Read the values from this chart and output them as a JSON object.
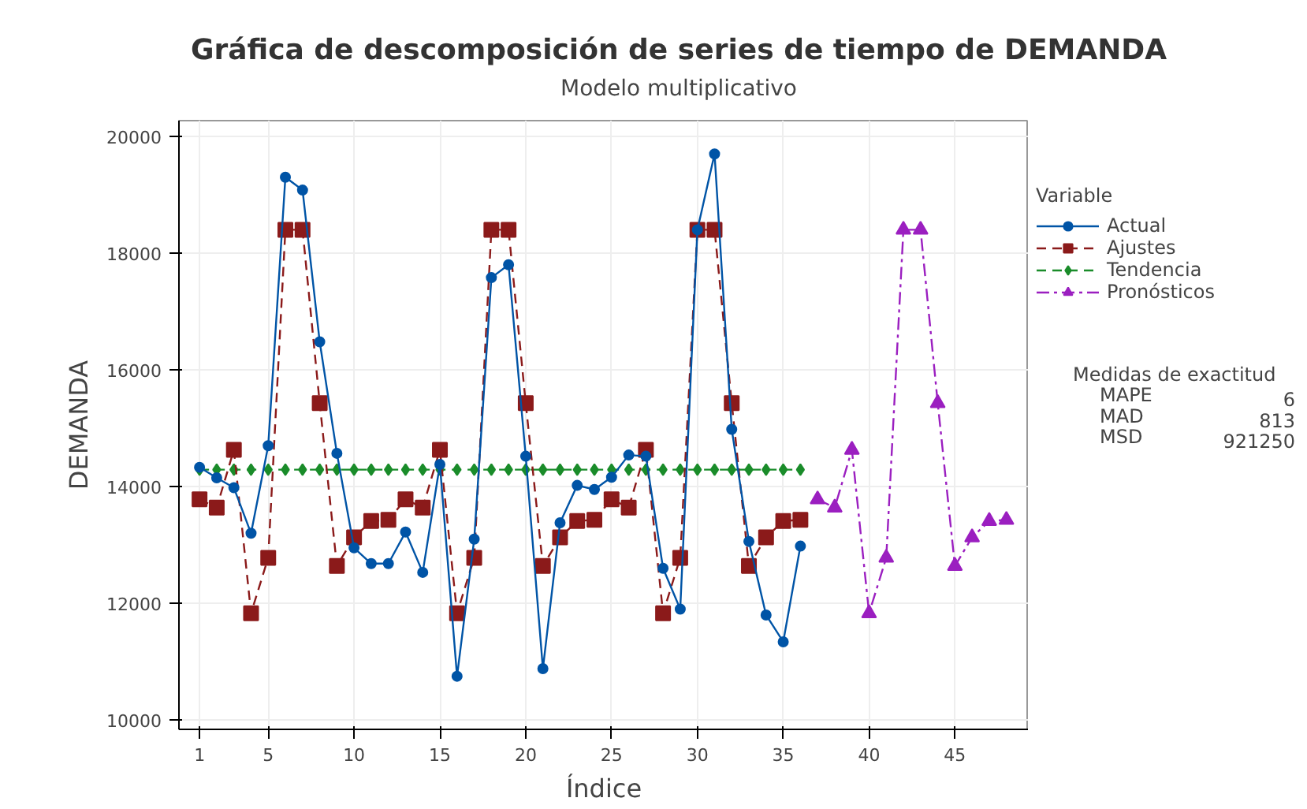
{
  "chart_data": {
    "type": "line",
    "title": "Gráfica de descomposición de series de tiempo de DEMANDA",
    "subtitle": "Modelo multiplicativo",
    "xlabel": "Índice",
    "ylabel": "DEMANDA",
    "legend_title": "Variable",
    "xlim": [
      -0.2,
      49.3
    ],
    "xticks": [
      1,
      5,
      10,
      15,
      20,
      25,
      30,
      35,
      40,
      45
    ],
    "ylim": [
      9840,
      20270
    ],
    "yticks": [
      10000,
      12000,
      14000,
      16000,
      18000,
      20000
    ],
    "grid": true,
    "legend": "right",
    "series": [
      {
        "name": "Actual",
        "color": "#0054a6",
        "marker": "circle",
        "line_style": "solid",
        "x": [
          1,
          2,
          3,
          4,
          5,
          6,
          7,
          8,
          9,
          10,
          11,
          12,
          13,
          14,
          15,
          16,
          17,
          18,
          19,
          20,
          21,
          22,
          23,
          24,
          25,
          26,
          27,
          28,
          29,
          30,
          31,
          32,
          33,
          34,
          35,
          36
        ],
        "values": [
          14330,
          14150,
          13980,
          13200,
          14700,
          19300,
          19080,
          16480,
          14570,
          12950,
          12680,
          12680,
          13220,
          12530,
          14380,
          10750,
          13100,
          17580,
          17800,
          14520,
          10880,
          13380,
          14020,
          13950,
          14160,
          14540,
          14520,
          12600,
          11900,
          18400,
          19700,
          14980,
          13060,
          11800,
          11340,
          12980
        ]
      },
      {
        "name": "Ajustes",
        "color": "#8b1a1a",
        "marker": "square",
        "line_style": "dashed",
        "x": [
          1,
          2,
          3,
          4,
          5,
          6,
          7,
          8,
          9,
          10,
          11,
          12,
          13,
          14,
          15,
          16,
          17,
          18,
          19,
          20,
          21,
          22,
          23,
          24,
          25,
          26,
          27,
          28,
          29,
          30,
          31,
          32,
          33,
          34,
          35,
          36
        ],
        "values": [
          13780,
          13640,
          14630,
          11830,
          12780,
          18400,
          18400,
          15430,
          12640,
          13130,
          13410,
          13430,
          13780,
          13640,
          14630,
          11830,
          12780,
          18400,
          18400,
          15430,
          12640,
          13130,
          13410,
          13430,
          13780,
          13640,
          14630,
          11830,
          12780,
          18400,
          18400,
          15430,
          12640,
          13130,
          13410,
          13430
        ]
      },
      {
        "name": "Tendencia",
        "color": "#1a8c2a",
        "marker": "diamond",
        "line_style": "dashed",
        "x": [
          1,
          2,
          3,
          4,
          5,
          6,
          7,
          8,
          9,
          10,
          11,
          12,
          13,
          14,
          15,
          16,
          17,
          18,
          19,
          20,
          21,
          22,
          23,
          24,
          25,
          26,
          27,
          28,
          29,
          30,
          31,
          32,
          33,
          34,
          35,
          36
        ],
        "values": [
          14290,
          14290,
          14290,
          14290,
          14290,
          14290,
          14290,
          14290,
          14290,
          14290,
          14290,
          14290,
          14290,
          14290,
          14290,
          14290,
          14290,
          14290,
          14290,
          14290,
          14290,
          14290,
          14290,
          14290,
          14290,
          14290,
          14290,
          14290,
          14290,
          14290,
          14290,
          14290,
          14290,
          14290,
          14290,
          14290
        ]
      },
      {
        "name": "Pronósticos",
        "color": "#9b1fc0",
        "marker": "triangle",
        "line_style": "dashdot",
        "x": [
          37,
          38,
          39,
          40,
          41,
          42,
          43,
          44,
          45,
          46,
          47,
          48
        ],
        "values": [
          13780,
          13640,
          14630,
          11830,
          12780,
          18400,
          18400,
          15430,
          12640,
          13130,
          13410,
          13430
        ]
      }
    ],
    "annotations": [
      "Medidas de exactitud",
      "MAPE",
      "6",
      "MAD",
      "813",
      "MSD",
      "921250"
    ]
  }
}
